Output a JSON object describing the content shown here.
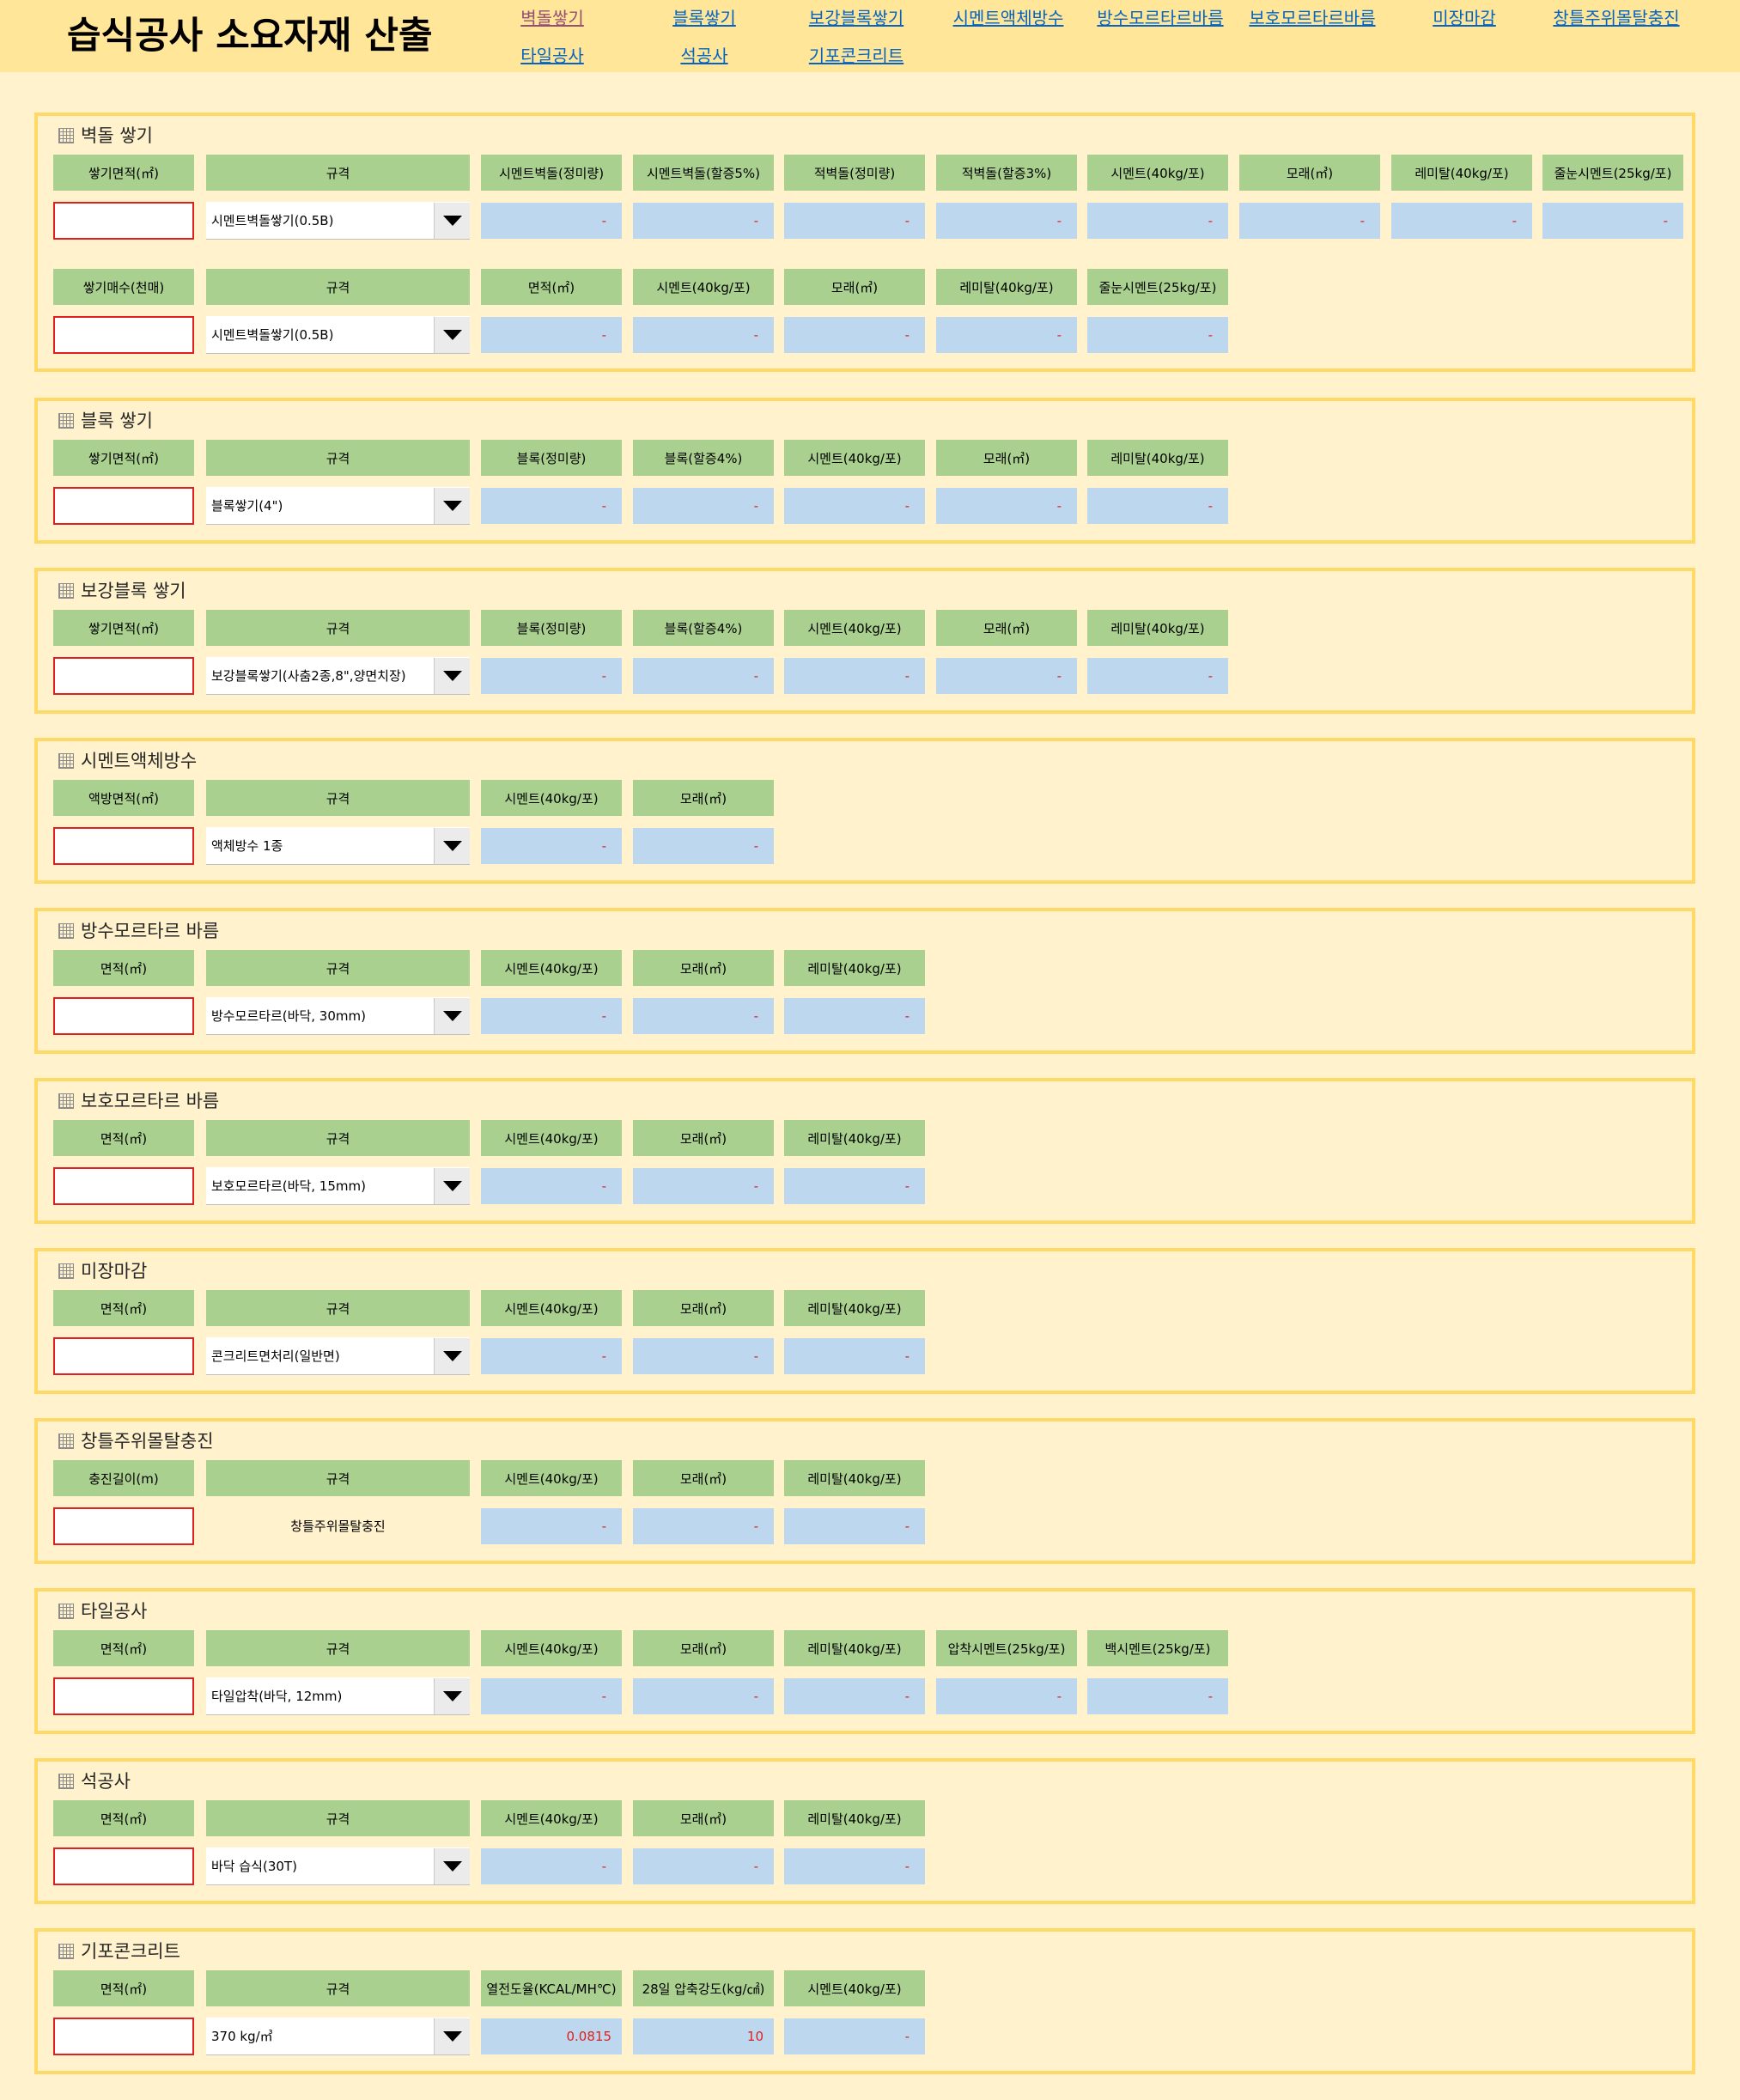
{
  "page": {
    "title": "습식공사 소요자재 산출"
  },
  "nav": [
    {
      "label": "벽돌쌓기",
      "visited": true
    },
    {
      "label": "블록쌓기"
    },
    {
      "label": "보강블록쌓기"
    },
    {
      "label": "시멘트액체방수"
    },
    {
      "label": "방수모르타르바름"
    },
    {
      "label": "보호모르타르바름"
    },
    {
      "label": "미장마감"
    },
    {
      "label": "창틀주위몰탈충진"
    },
    {
      "label": "타일공사"
    },
    {
      "label": "석공사"
    },
    {
      "label": "기포콘크리트"
    }
  ],
  "sections": [
    {
      "title": "벽돌 쌓기",
      "rows": [
        {
          "input_label": "쌓기면적(㎡)",
          "spec_label": "규격",
          "spec_value": "시멘트벽돌쌓기(0.5B)",
          "outputs": [
            "시멘트벽돌(정미량)",
            "시멘트벽돌(할증5%)",
            "적벽돌(정미량)",
            "적벽돌(할증3%)",
            "시멘트(40kg/포)",
            "모래(㎥)",
            "레미탈(40kg/포)",
            "줄눈시멘트(25kg/포)"
          ],
          "values": [
            "-",
            "-",
            "-",
            "-",
            "-",
            "-",
            "-",
            "-"
          ]
        },
        {
          "input_label": "쌓기매수(천매)",
          "spec_label": "규격",
          "spec_value": "시멘트벽돌쌓기(0.5B)",
          "outputs": [
            "면적(㎡)",
            "시멘트(40kg/포)",
            "모래(㎥)",
            "레미탈(40kg/포)",
            "줄눈시멘트(25kg/포)"
          ],
          "values": [
            "-",
            "-",
            "-",
            "-",
            "-"
          ]
        }
      ]
    },
    {
      "title": "블록 쌓기",
      "rows": [
        {
          "input_label": "쌓기면적(㎡)",
          "spec_label": "규격",
          "spec_value": "블록쌓기(4\")",
          "outputs": [
            "블록(정미량)",
            "블록(할증4%)",
            "시멘트(40kg/포)",
            "모래(㎥)",
            "레미탈(40kg/포)"
          ],
          "values": [
            "-",
            "-",
            "-",
            "-",
            "-"
          ]
        }
      ]
    },
    {
      "title": "보강블록 쌓기",
      "rows": [
        {
          "input_label": "쌓기면적(㎡)",
          "spec_label": "규격",
          "spec_value": "보강블록쌓기(사춤2종,8\",양면치장)",
          "outputs": [
            "블록(정미량)",
            "블록(할증4%)",
            "시멘트(40kg/포)",
            "모래(㎥)",
            "레미탈(40kg/포)"
          ],
          "values": [
            "-",
            "-",
            "-",
            "-",
            "-"
          ]
        }
      ]
    },
    {
      "title": "시멘트액체방수",
      "rows": [
        {
          "input_label": "액방면적(㎡)",
          "spec_label": "규격",
          "spec_value": "액체방수 1종",
          "outputs": [
            "시멘트(40kg/포)",
            "모래(㎥)"
          ],
          "values": [
            "-",
            "-"
          ]
        }
      ]
    },
    {
      "title": "방수모르타르 바름",
      "rows": [
        {
          "input_label": "면적(㎡)",
          "spec_label": "규격",
          "spec_value": "방수모르타르(바닥, 30mm)",
          "outputs": [
            "시멘트(40kg/포)",
            "모래(㎥)",
            "레미탈(40kg/포)"
          ],
          "values": [
            "-",
            "-",
            "-"
          ]
        }
      ]
    },
    {
      "title": "보호모르타르 바름",
      "rows": [
        {
          "input_label": "면적(㎡)",
          "spec_label": "규격",
          "spec_value": "보호모르타르(바닥, 15mm)",
          "outputs": [
            "시멘트(40kg/포)",
            "모래(㎥)",
            "레미탈(40kg/포)"
          ],
          "values": [
            "-",
            "-",
            "-"
          ]
        }
      ]
    },
    {
      "title": "미장마감",
      "rows": [
        {
          "input_label": "면적(㎡)",
          "spec_label": "규격",
          "spec_value": "콘크리트면처리(일반면)",
          "outputs": [
            "시멘트(40kg/포)",
            "모래(㎥)",
            "레미탈(40kg/포)"
          ],
          "values": [
            "-",
            "-",
            "-"
          ]
        }
      ]
    },
    {
      "title": "창틀주위몰탈충진",
      "rows": [
        {
          "input_label": "충진길이(m)",
          "spec_label": "규격",
          "spec_value": "창틀주위몰탈충진",
          "spec_static": true,
          "outputs": [
            "시멘트(40kg/포)",
            "모래(㎥)",
            "레미탈(40kg/포)"
          ],
          "values": [
            "-",
            "-",
            "-"
          ]
        }
      ]
    },
    {
      "title": "타일공사",
      "rows": [
        {
          "input_label": "면적(㎡)",
          "spec_label": "규격",
          "spec_value": "타일압착(바닥, 12mm)",
          "outputs": [
            "시멘트(40kg/포)",
            "모래(㎥)",
            "레미탈(40kg/포)",
            "압착시멘트(25kg/포)",
            "백시멘트(25kg/포)"
          ],
          "values": [
            "-",
            "-",
            "-",
            "-",
            "-"
          ]
        }
      ]
    },
    {
      "title": "석공사",
      "rows": [
        {
          "input_label": "면적(㎡)",
          "spec_label": "규격",
          "spec_value": "바닥 습식(30T)",
          "outputs": [
            "시멘트(40kg/포)",
            "모래(㎥)",
            "레미탈(40kg/포)"
          ],
          "values": [
            "-",
            "-",
            "-"
          ]
        }
      ]
    },
    {
      "title": "기포콘크리트",
      "rows": [
        {
          "input_label": "면적(㎡)",
          "spec_label": "규격",
          "spec_value": "370 kg/㎥",
          "outputs": [
            "열전도율(KCAL/MH℃)",
            "28일 압축강도(kg/㎠)",
            "시멘트(40kg/포)"
          ],
          "values": [
            "0.0815",
            "10",
            "-"
          ]
        }
      ]
    }
  ]
}
